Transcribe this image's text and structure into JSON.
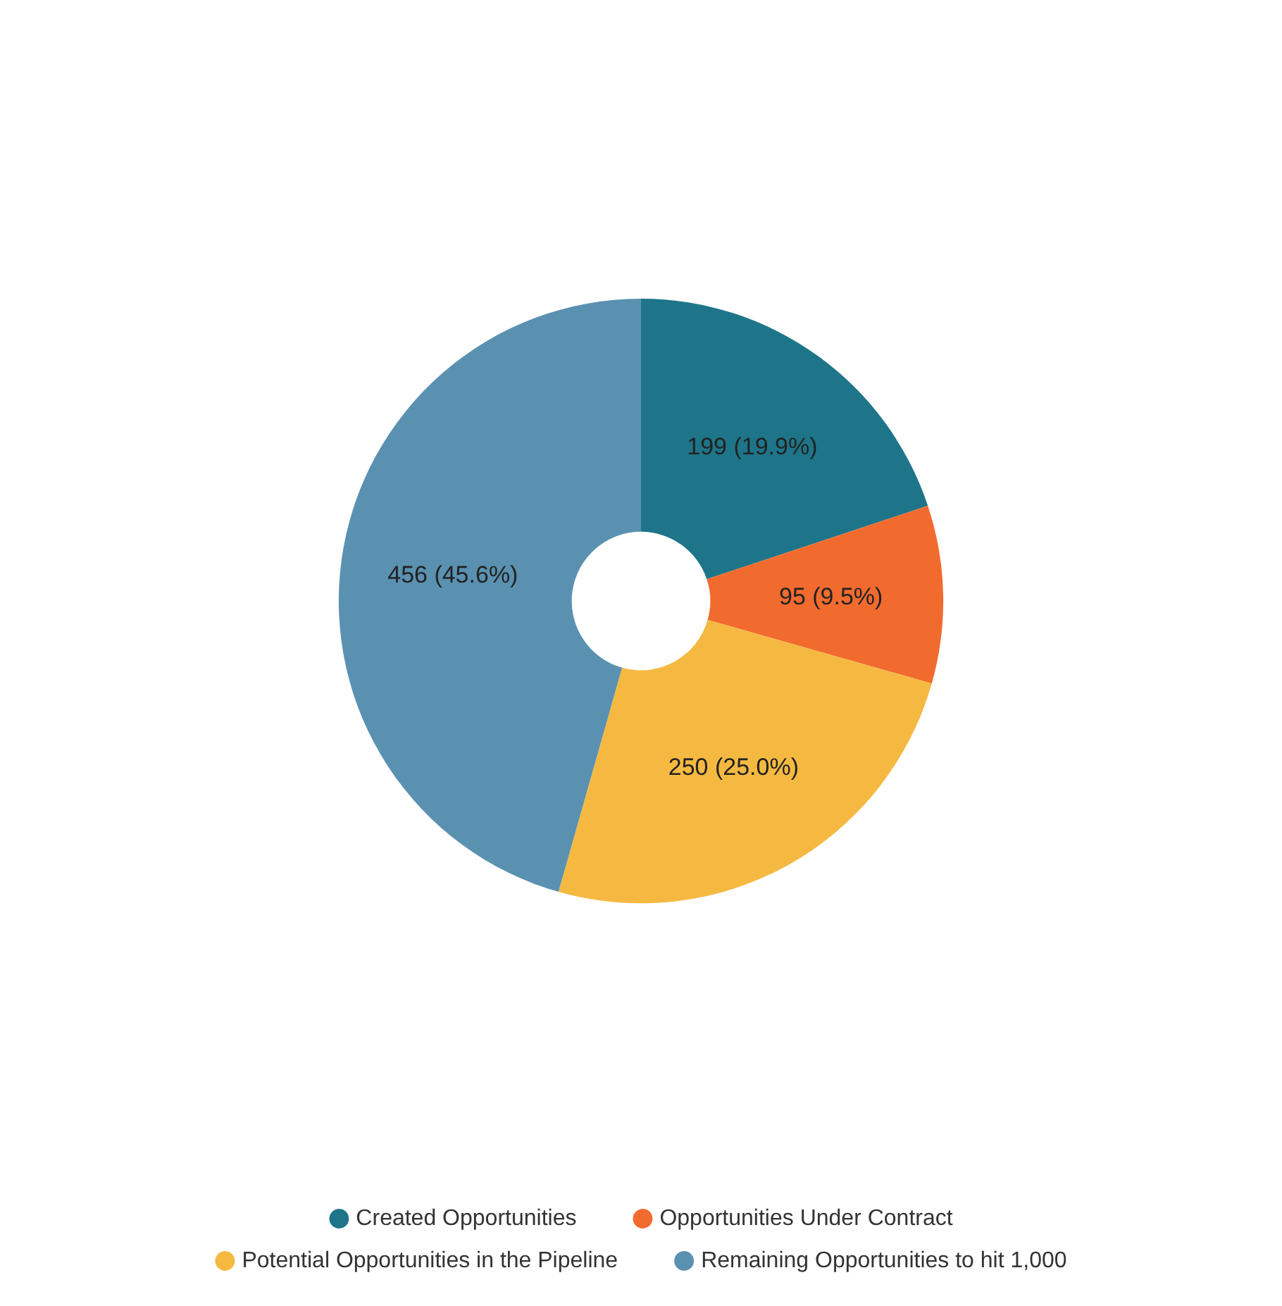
{
  "chart_data": {
    "type": "donut",
    "categories": [
      "Created Opportunities",
      "Opportunities Under Contract",
      "Potential Opportunities in the Pipeline",
      "Remaining Opportunities to hit 1,000"
    ],
    "values": [
      199,
      95,
      250,
      456
    ],
    "colors": [
      "#1e7589",
      "#f26b2e",
      "#f5b942",
      "#5a91b1"
    ],
    "value_labels": [
      "199 (19.9%)",
      "95 (9.5%)",
      "250 (25.0%)",
      "456 (45.6%)"
    ],
    "legend": "bottom"
  }
}
